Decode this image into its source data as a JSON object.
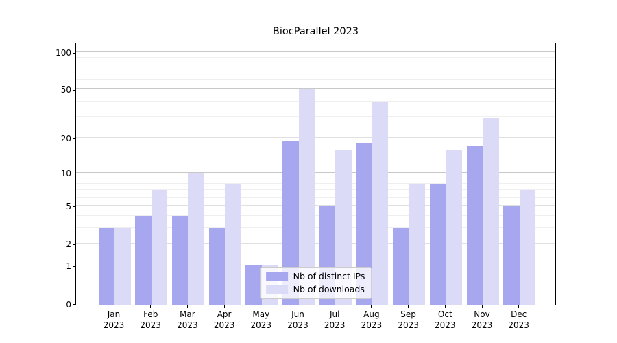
{
  "title": "BiocParallel 2023",
  "colors": {
    "ips_bar": "#a7a7ef",
    "downloads_bar": "#dbdbf8",
    "grid_major": "#c8c8c8",
    "grid_minor": "#efefef",
    "axis": "#000000"
  },
  "legend": {
    "items": [
      {
        "label": "Nb of distinct IPs",
        "series": "ips"
      },
      {
        "label": "Nb of downloads",
        "series": "downloads"
      }
    ]
  },
  "chart_data": {
    "type": "bar",
    "title": "BiocParallel 2023",
    "xlabel": "",
    "ylabel": "",
    "categories": [
      {
        "month": "Jan",
        "year": "2023"
      },
      {
        "month": "Feb",
        "year": "2023"
      },
      {
        "month": "Mar",
        "year": "2023"
      },
      {
        "month": "Apr",
        "year": "2023"
      },
      {
        "month": "May",
        "year": "2023"
      },
      {
        "month": "Jun",
        "year": "2023"
      },
      {
        "month": "Jul",
        "year": "2023"
      },
      {
        "month": "Aug",
        "year": "2023"
      },
      {
        "month": "Sep",
        "year": "2023"
      },
      {
        "month": "Oct",
        "year": "2023"
      },
      {
        "month": "Nov",
        "year": "2023"
      },
      {
        "month": "Dec",
        "year": "2023"
      }
    ],
    "series": [
      {
        "name": "Nb of distinct IPs",
        "color": "#a7a7ef",
        "values": [
          3,
          4,
          4,
          3,
          1,
          19,
          5,
          18,
          3,
          8,
          17,
          5
        ]
      },
      {
        "name": "Nb of downloads",
        "color": "#dbdbf8",
        "values": [
          3,
          7,
          10,
          8,
          1,
          50,
          16,
          40,
          8,
          16,
          29,
          7
        ]
      }
    ],
    "yscale": "log1p",
    "ylim": [
      0,
      122
    ],
    "yticks": [
      0,
      1,
      2,
      5,
      10,
      20,
      50,
      100
    ],
    "ytick_strong": [
      1,
      10,
      50,
      100
    ],
    "yticks_minor": [
      3,
      4,
      6,
      7,
      8,
      9,
      30,
      40,
      60,
      70,
      80,
      90
    ],
    "grid": true,
    "legend_position": "lower center"
  }
}
